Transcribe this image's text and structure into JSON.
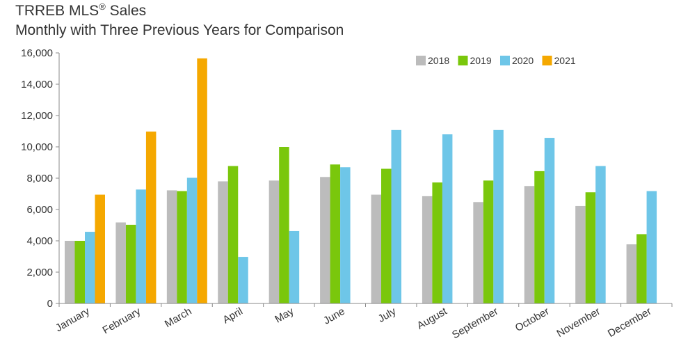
{
  "title": {
    "main": "TRREB MLS",
    "mark": "®",
    "suffix": " Sales",
    "subtitle": "Monthly with Three Previous Years for Comparison"
  },
  "chart_data": {
    "type": "bar",
    "title": "TRREB MLS® Sales",
    "subtitle": "Monthly with Three Previous Years for Comparison",
    "xlabel": "",
    "ylabel": "",
    "ylim": [
      0,
      16000
    ],
    "yticks": [
      0,
      2000,
      4000,
      6000,
      8000,
      10000,
      12000,
      14000,
      16000
    ],
    "ytick_labels": [
      "0",
      "2,000",
      "4,000",
      "6,000",
      "8,000",
      "10,000",
      "12,000",
      "14,000",
      "16,000"
    ],
    "grid": false,
    "legend_position": "top-right",
    "categories": [
      "January",
      "February",
      "March",
      "April",
      "May",
      "June",
      "July",
      "August",
      "September",
      "October",
      "November",
      "December"
    ],
    "series": [
      {
        "name": "2018",
        "color": "#bcbcbc",
        "values": [
          4000,
          5175,
          7225,
          7800,
          7850,
          8075,
          6950,
          6850,
          6475,
          7500,
          6225,
          3775
        ]
      },
      {
        "name": "2019",
        "color": "#7ac70c",
        "values": [
          4000,
          5025,
          7175,
          8775,
          10000,
          8875,
          8600,
          7725,
          7850,
          8450,
          7100,
          4425
        ]
      },
      {
        "name": "2020",
        "color": "#6ec6e8",
        "values": [
          4575,
          7275,
          8025,
          2975,
          4625,
          8700,
          11075,
          10800,
          11075,
          10575,
          8775,
          7175
        ]
      },
      {
        "name": "2021",
        "color": "#f5a800",
        "values": [
          6950,
          10975,
          15650,
          null,
          null,
          null,
          null,
          null,
          null,
          null,
          null,
          null
        ]
      }
    ]
  }
}
